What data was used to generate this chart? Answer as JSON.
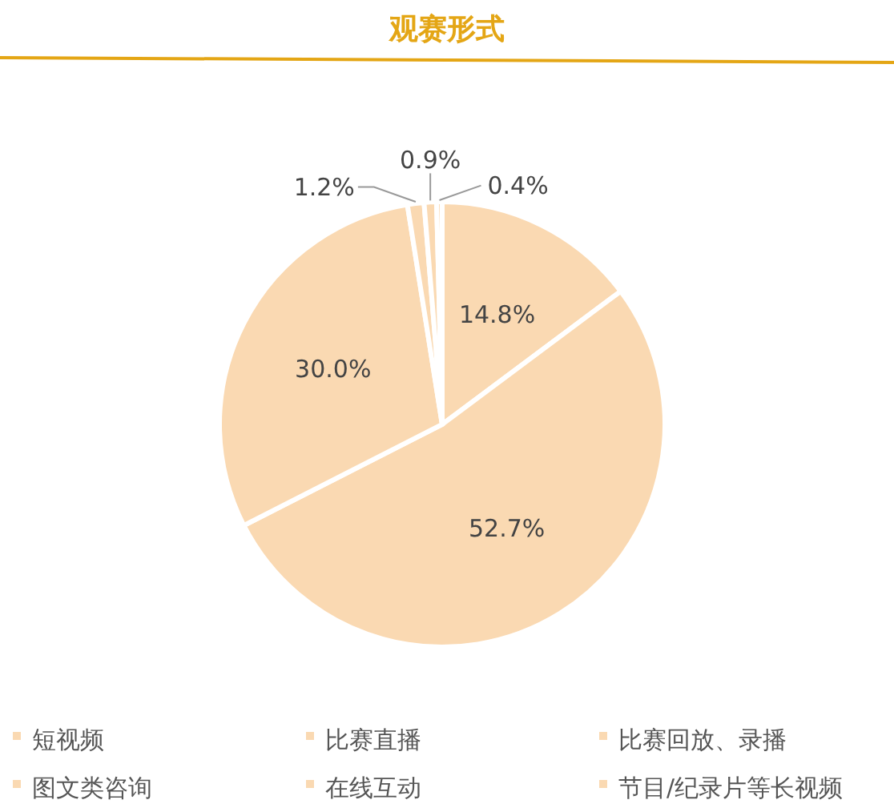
{
  "chart_data": {
    "type": "pie",
    "title": "观赛形式",
    "categories": [
      "短视频",
      "比赛直播",
      "比赛回放、录播",
      "图文类咨询",
      "在线互动",
      "节目/纪录片等长视频"
    ],
    "values": [
      14.8,
      52.7,
      30.0,
      1.2,
      0.9,
      0.4
    ],
    "colors": [
      "#fad9b2",
      "#fad9b2",
      "#fad9b2",
      "#fad9b2",
      "#fad9b2",
      "#fad9b2"
    ],
    "value_labels": [
      "14.8%",
      "52.7%",
      "30.0%",
      "1.2%",
      "0.9%",
      "0.4%"
    ],
    "legend": "bottom"
  }
}
